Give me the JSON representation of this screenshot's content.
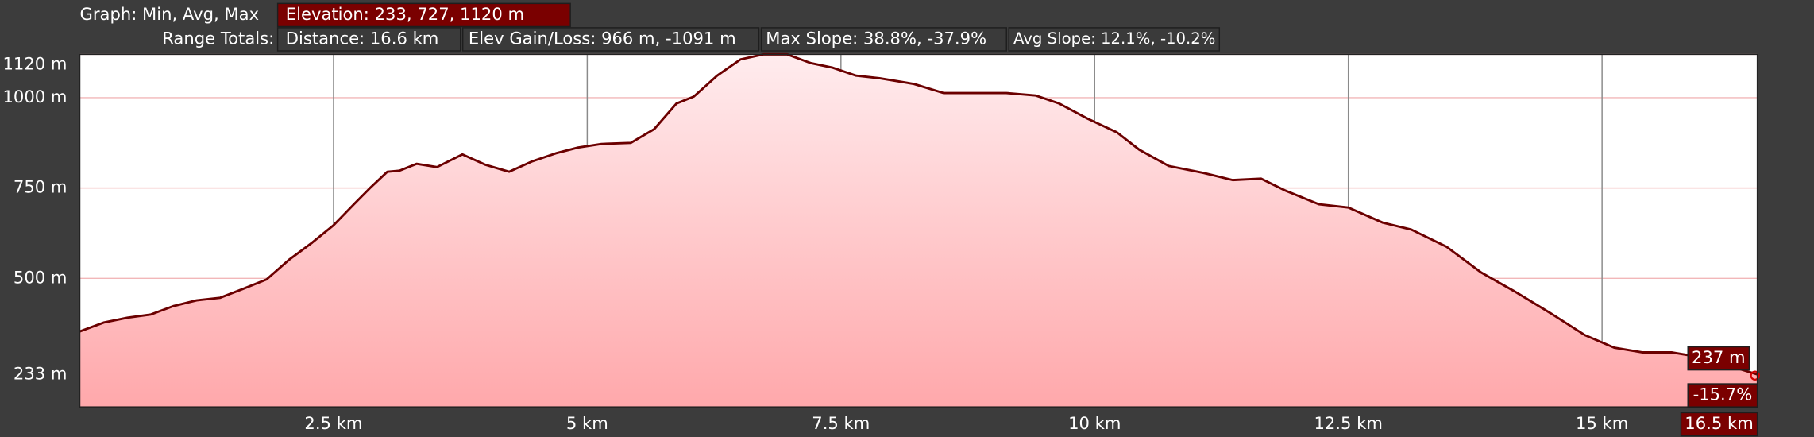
{
  "header": {
    "graph_label": "Graph: Min, Avg, Max",
    "elevation": "Elevation: 233, 727, 1120 m",
    "range_label": "Range Totals:",
    "distance": "Distance: 16.6 km",
    "elev_gain_loss": "Elev Gain/Loss: 966 m, -1091 m",
    "max_slope": "Max Slope: 38.8%, -37.9%",
    "avg_slope": "Avg Slope: 12.1%, -10.2%"
  },
  "chart_data": {
    "type": "area",
    "x": [
      0,
      0.24,
      0.47,
      0.7,
      0.92,
      1.15,
      1.38,
      1.61,
      1.84,
      2.06,
      2.29,
      2.5,
      2.69,
      2.86,
      3.03,
      3.15,
      3.32,
      3.52,
      3.77,
      4.0,
      4.23,
      4.46,
      4.69,
      4.91,
      5.14,
      5.43,
      5.66,
      5.88,
      6.05,
      6.28,
      6.51,
      6.74,
      6.97,
      7.2,
      7.42,
      7.65,
      7.88,
      8.22,
      8.51,
      8.85,
      9.13,
      9.42,
      9.65,
      9.93,
      10.22,
      10.44,
      10.73,
      11.07,
      11.36,
      11.64,
      11.87,
      12.21,
      12.5,
      12.84,
      13.12,
      13.47,
      13.81,
      14.15,
      14.49,
      14.83,
      15.12,
      15.4,
      15.69,
      16.03,
      16.31,
      16.53
    ],
    "series": [
      {
        "name": "Elevation",
        "color": "#6b0000",
        "values": [
          353,
          378,
          391,
          400,
          423,
          439,
          446,
          471,
          497,
          551,
          599,
          647,
          702,
          750,
          795,
          798,
          817,
          808,
          843,
          814,
          795,
          824,
          846,
          862,
          872,
          875,
          913,
          984,
          1003,
          1061,
          1106,
          1120,
          1120,
          1096,
          1083,
          1061,
          1054,
          1038,
          1013,
          1013,
          1013,
          1006,
          984,
          942,
          904,
          856,
          811,
          792,
          772,
          776,
          744,
          705,
          696,
          654,
          635,
          587,
          516,
          462,
          404,
          343,
          308,
          295,
          295,
          279,
          253,
          234
        ]
      }
    ],
    "xlim": [
      0,
      16.53
    ],
    "ylim": [
      144,
      1120
    ],
    "xticks": [
      {
        "value": 2.5,
        "label": "2.5 km"
      },
      {
        "value": 5,
        "label": "5 km"
      },
      {
        "value": 7.5,
        "label": "7.5 km"
      },
      {
        "value": 10,
        "label": "10 km"
      },
      {
        "value": 12.5,
        "label": "12.5 km"
      },
      {
        "value": 15,
        "label": "15 km"
      }
    ],
    "yticks": [
      {
        "value": 233,
        "label": "233 m"
      },
      {
        "value": 500,
        "label": "500 m"
      },
      {
        "value": 750,
        "label": "750 m"
      },
      {
        "value": 1000,
        "label": "1000 m"
      },
      {
        "value": 1120,
        "label": "1120 m"
      }
    ],
    "grid": true,
    "cursor_labels": [
      "237 m",
      "-15.7%",
      "16.5 km"
    ]
  }
}
